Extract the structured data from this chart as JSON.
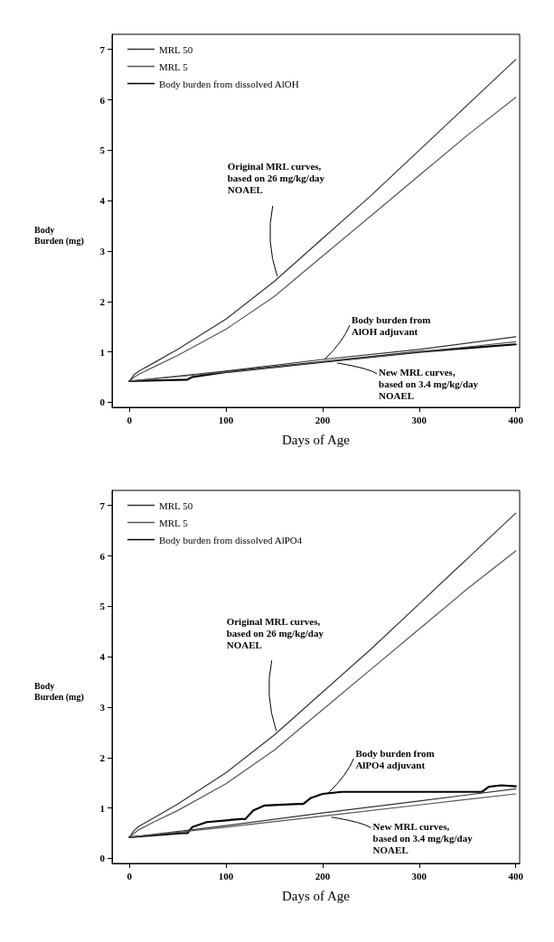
{
  "chart_data": [
    {
      "type": "line",
      "ylabel": "Body\nBurden (mg)",
      "xlabel": "Days of Age",
      "xlim": [
        -18,
        404
      ],
      "ylim": [
        -0.1,
        7.3
      ],
      "xticks": [
        0,
        100,
        200,
        300,
        400
      ],
      "yticks": [
        0,
        1,
        2,
        3,
        4,
        5,
        6,
        7
      ],
      "grid": false,
      "legend": "top left",
      "marker": "none",
      "line_style": "solid",
      "annotations": [
        {
          "text": "Original MRL curves,\nbased on 26 mg/kg/day\nNOAEL",
          "x": 153,
          "y": 2.5
        },
        {
          "text": "Body burden from\nAlOH adjuvant",
          "x": 202,
          "y": 0.85
        },
        {
          "text": "New MRL curves,\nbased on 3.4 mg/kg/day\nNOAEL",
          "x": 215,
          "y": 0.78
        }
      ],
      "series": [
        {
          "name": "MRL 50",
          "color": "#333333",
          "x": [
            0,
            5,
            10,
            25,
            50,
            100,
            150,
            200,
            250,
            300,
            350,
            400
          ],
          "values": [
            0.42,
            0.55,
            0.62,
            0.78,
            1.05,
            1.65,
            2.4,
            3.25,
            4.1,
            5.0,
            5.9,
            6.8
          ]
        },
        {
          "name": "MRL 5",
          "color": "#555555",
          "x": [
            0,
            5,
            10,
            25,
            50,
            100,
            150,
            200,
            250,
            300,
            350,
            400
          ],
          "values": [
            0.42,
            0.5,
            0.56,
            0.7,
            0.93,
            1.45,
            2.1,
            2.9,
            3.7,
            4.5,
            5.3,
            6.05
          ]
        },
        {
          "name": "Body burden from dissolved AlOH",
          "color": "#000000",
          "x": [
            0,
            60,
            65,
            100,
            200,
            300,
            400
          ],
          "values": [
            0.42,
            0.45,
            0.5,
            0.6,
            0.8,
            1.0,
            1.15
          ]
        },
        {
          "color": "#333333",
          "x": [
            0,
            100,
            200,
            300,
            400
          ],
          "values": [
            0.42,
            0.62,
            0.85,
            1.05,
            1.3
          ]
        },
        {
          "color": "#555555",
          "x": [
            0,
            100,
            200,
            300,
            400
          ],
          "values": [
            0.42,
            0.6,
            0.8,
            1.0,
            1.2
          ]
        }
      ]
    },
    {
      "type": "line",
      "ylabel": "Body\nBurden (mg)",
      "xlabel": "Days of Age",
      "xlim": [
        -18,
        404
      ],
      "ylim": [
        -0.1,
        7.3
      ],
      "xticks": [
        0,
        100,
        200,
        300,
        400
      ],
      "yticks": [
        0,
        1,
        2,
        3,
        4,
        5,
        6,
        7
      ],
      "grid": false,
      "legend": "top left",
      "marker": "none",
      "line_style": "solid",
      "annotations": [
        {
          "text": "Original MRL curves,\nbased on 26 mg/kg/day\nNOAEL",
          "x": 152,
          "y": 2.53
        },
        {
          "text": "Body burden from\nAlPO4 adjuvant",
          "x": 206,
          "y": 1.3
        },
        {
          "text": "New MRL curves,\nbased on 3.4 mg/kg/day\nNOAEL",
          "x": 209,
          "y": 0.82
        }
      ],
      "series": [
        {
          "name": "MRL 50",
          "color": "#333333",
          "x": [
            0,
            5,
            10,
            25,
            50,
            100,
            150,
            200,
            250,
            300,
            350,
            400
          ],
          "values": [
            0.42,
            0.56,
            0.64,
            0.8,
            1.08,
            1.7,
            2.45,
            3.3,
            4.15,
            5.05,
            5.95,
            6.85
          ]
        },
        {
          "name": "MRL 5",
          "color": "#555555",
          "x": [
            0,
            5,
            10,
            25,
            50,
            100,
            150,
            200,
            250,
            300,
            350,
            400
          ],
          "values": [
            0.42,
            0.5,
            0.57,
            0.72,
            0.95,
            1.48,
            2.15,
            2.95,
            3.75,
            4.55,
            5.35,
            6.1
          ]
        },
        {
          "name": "Body burden from dissolved AlPO4",
          "color": "#000000",
          "x": [
            0,
            55,
            60,
            65,
            80,
            115,
            120,
            128,
            140,
            175,
            180,
            188,
            200,
            220,
            365,
            372,
            385,
            400
          ],
          "values": [
            0.42,
            0.5,
            0.5,
            0.62,
            0.72,
            0.78,
            0.78,
            0.95,
            1.05,
            1.08,
            1.08,
            1.2,
            1.28,
            1.32,
            1.32,
            1.42,
            1.45,
            1.43
          ]
        },
        {
          "color": "#333333",
          "x": [
            0,
            100,
            200,
            300,
            400
          ],
          "values": [
            0.42,
            0.65,
            0.9,
            1.14,
            1.38
          ]
        },
        {
          "color": "#555555",
          "x": [
            0,
            100,
            200,
            300,
            400
          ],
          "values": [
            0.42,
            0.62,
            0.84,
            1.06,
            1.28
          ]
        }
      ]
    }
  ]
}
